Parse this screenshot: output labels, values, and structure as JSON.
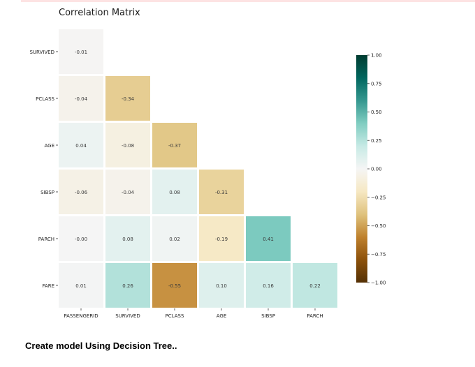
{
  "chart_data": {
    "type": "heatmap",
    "title": "Correlation Matrix",
    "row_labels": [
      "SURVIVED",
      "PCLASS",
      "AGE",
      "SIBSP",
      "PARCH",
      "FARE"
    ],
    "col_labels": [
      "PASSENGERID",
      "SURVIVED",
      "PCLASS",
      "AGE",
      "SIBSP",
      "PARCH"
    ],
    "values": [
      [
        -0.01
      ],
      [
        -0.04,
        -0.34
      ],
      [
        0.04,
        -0.08,
        -0.37
      ],
      [
        -0.06,
        -0.04,
        0.08,
        -0.31
      ],
      [
        -0.0,
        0.08,
        0.02,
        -0.19,
        0.41
      ],
      [
        0.01,
        0.26,
        -0.55,
        0.1,
        0.16,
        0.22
      ]
    ],
    "value_labels": [
      [
        "-0.01"
      ],
      [
        "-0.04",
        "-0.34"
      ],
      [
        "0.04",
        "-0.08",
        "-0.37"
      ],
      [
        "-0.06",
        "-0.04",
        "0.08",
        "-0.31"
      ],
      [
        "-0.00",
        "0.08",
        "0.02",
        "-0.19",
        "0.41"
      ],
      [
        "0.01",
        "0.26",
        "-0.55",
        "0.10",
        "0.16",
        "0.22"
      ]
    ],
    "colormap": "BrBG",
    "vmin": -1.0,
    "vmax": 1.0,
    "colorbar_ticks": [
      "1.00",
      "0.75",
      "0.50",
      "0.25",
      "0.00",
      "−0.25",
      "−0.50",
      "−0.75",
      "−1.00"
    ],
    "colorbar_values": [
      1.0,
      0.75,
      0.5,
      0.25,
      0.0,
      -0.25,
      -0.5,
      -0.75,
      -1.0
    ]
  },
  "section_heading": "Create model Using Decision Tree.."
}
